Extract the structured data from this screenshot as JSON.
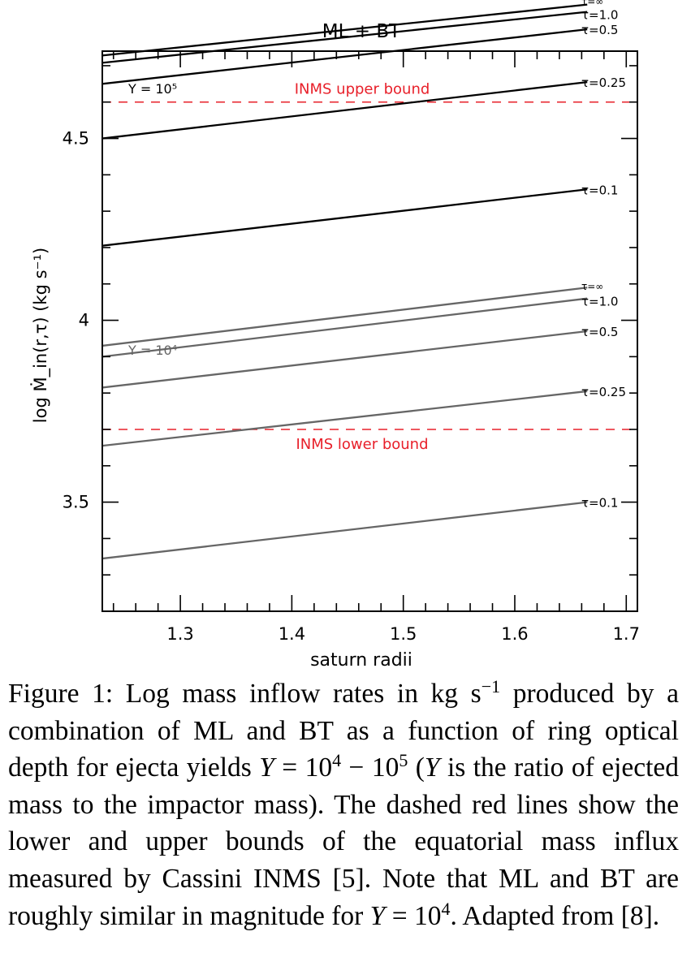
{
  "chart_data": {
    "type": "line",
    "title": "ML + BT",
    "xlabel": "saturn radii",
    "ylabel": "log Ṁ_in(r,τ) (kg s⁻¹)",
    "xlim": [
      1.23,
      1.71
    ],
    "ylim": [
      3.2,
      4.74
    ],
    "x_ticks": [
      "1.3",
      "1.4",
      "1.5",
      "1.6",
      "1.7"
    ],
    "y_ticks": [
      "3.5",
      "4",
      "4.5"
    ],
    "groups": [
      {
        "label": "Y = 10⁵",
        "color": "#000000",
        "series": [
          {
            "name": "τ=∞",
            "x": [
              1.23,
              1.665
            ],
            "y": [
              4.728,
              4.868
            ]
          },
          {
            "name": "τ=1.0",
            "x": [
              1.23,
              1.665
            ],
            "y": [
              4.708,
              4.848
            ]
          },
          {
            "name": "τ=0.5",
            "x": [
              1.23,
              1.665
            ],
            "y": [
              4.65,
              4.8
            ]
          },
          {
            "name": "τ=0.25",
            "x": [
              1.23,
              1.665
            ],
            "y": [
              4.5,
              4.655
            ]
          },
          {
            "name": "τ=0.1",
            "x": [
              1.23,
              1.665
            ],
            "y": [
              4.205,
              4.36
            ]
          }
        ]
      },
      {
        "label": "Y = 10⁴",
        "color": "#666666",
        "series": [
          {
            "name": "τ=∞",
            "x": [
              1.23,
              1.665
            ],
            "y": [
              3.93,
              4.09
            ]
          },
          {
            "name": "τ=1.0",
            "x": [
              1.23,
              1.665
            ],
            "y": [
              3.9,
              4.06
            ]
          },
          {
            "name": "τ=0.5",
            "x": [
              1.23,
              1.665
            ],
            "y": [
              3.815,
              3.97
            ]
          },
          {
            "name": "τ=0.25",
            "x": [
              1.23,
              1.665
            ],
            "y": [
              3.655,
              3.805
            ]
          },
          {
            "name": "τ=0.1",
            "x": [
              1.23,
              1.665
            ],
            "y": [
              3.345,
              3.5
            ]
          }
        ]
      }
    ],
    "reference_lines": [
      {
        "label": "INMS upper bound",
        "y": 4.6,
        "color": "#e8202a",
        "style": "dashed"
      },
      {
        "label": "INMS lower bound",
        "y": 3.7,
        "color": "#e8202a",
        "style": "dashed"
      }
    ]
  },
  "caption": {
    "figure_label": "Figure 1:",
    "part1": "Log mass inflow rates in kg s",
    "part1_sup": "−1",
    "part2": " produced by a combination of ML and BT as a function of ring optical depth for ejecta yields ",
    "sym_y": "Y",
    "eq1": " = 10",
    "eq1_sup": "4",
    "dash": " − 10",
    "dash_sup": "5",
    "paren_open": " (",
    "paren_rest": " is the ratio of ejected mass to the impactor mass). The dashed red lines show the lower and upper bounds of the equatorial mass influx measured by Cassini INMS [5]. Note that ML and BT are roughly similar in magnitude for ",
    "eq2": " = 10",
    "eq2_sup": "4",
    "tail": ". Adapted from [8]."
  }
}
